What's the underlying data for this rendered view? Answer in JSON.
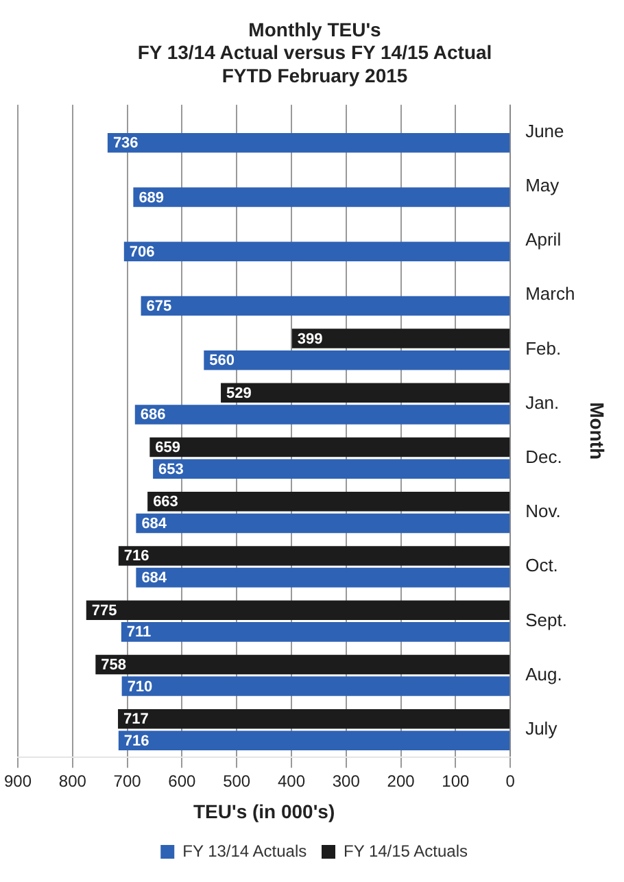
{
  "chart_data": {
    "type": "bar",
    "orientation": "horizontal",
    "title": [
      "Monthly TEU's",
      "FY 13/14 Actual versus FY 14/15 Actual",
      "FYTD February 2015"
    ],
    "xlabel": "TEU's (in 000's)",
    "ylabel": "Month",
    "categories": [
      "June",
      "May",
      "April",
      "March",
      "Feb.",
      "Jan.",
      "Dec.",
      "Nov.",
      "Oct.",
      "Sept.",
      "Aug.",
      "July"
    ],
    "series": [
      {
        "name": "FY 14/15 Actuals",
        "color": "#1c1c1c",
        "values": [
          null,
          null,
          null,
          null,
          399,
          529,
          659,
          663,
          716,
          775,
          758,
          717
        ]
      },
      {
        "name": "FY 13/14 Actuals",
        "color": "#2e62b4",
        "values": [
          736,
          689,
          706,
          675,
          560,
          686,
          653,
          684,
          684,
          711,
          710,
          716
        ]
      }
    ],
    "xlim": [
      900,
      0
    ],
    "xticks": [
      900,
      800,
      700,
      600,
      500,
      400,
      300,
      200,
      100,
      0
    ],
    "grid": "x",
    "legend": "bottom",
    "data_labels": true
  }
}
